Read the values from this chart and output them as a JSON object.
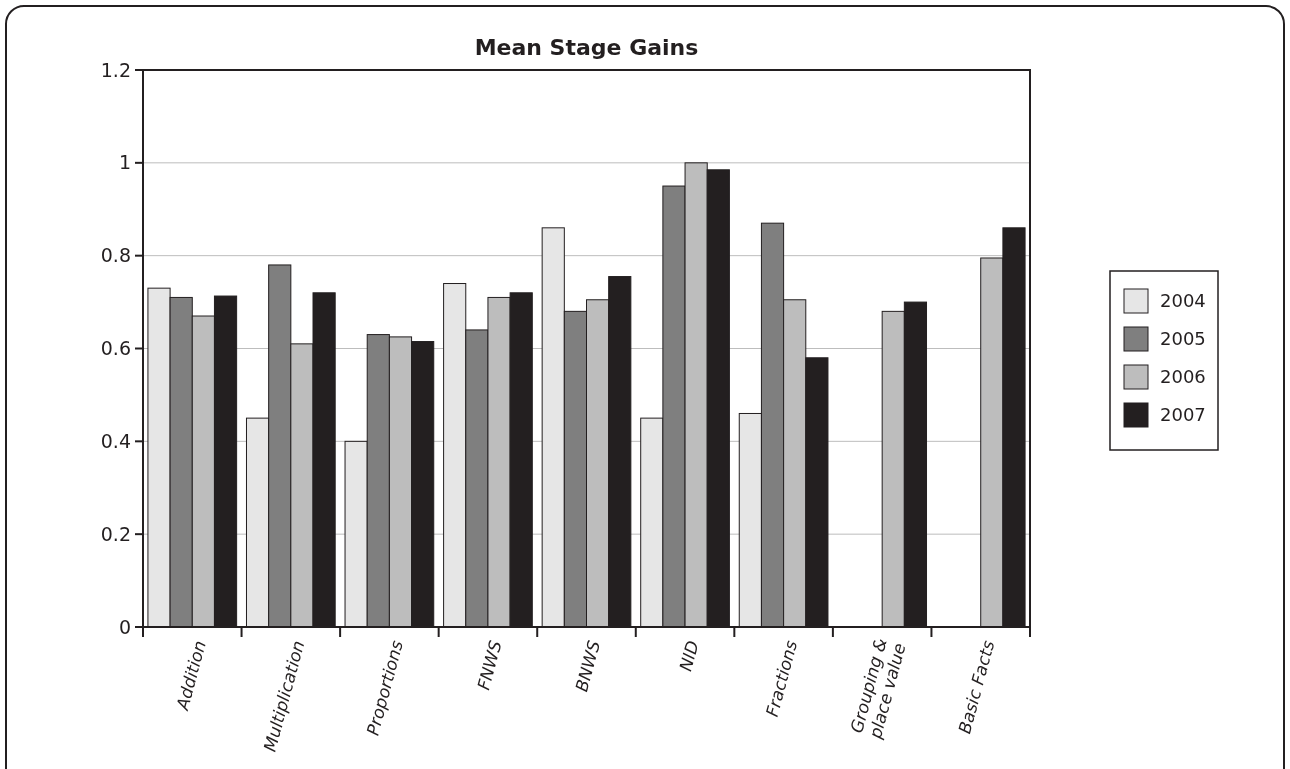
{
  "chart_data": {
    "type": "bar",
    "title": "Mean Stage Gains",
    "categories": [
      "Addition",
      "Multiplication",
      "Proportions",
      "FNWS",
      "BNWS",
      "NID",
      "Fractions",
      "Grouping & place value",
      "Basic Facts"
    ],
    "series": [
      {
        "name": "2004",
        "color": "#e6e6e6",
        "values": [
          0.73,
          0.45,
          0.4,
          0.74,
          0.86,
          0.45,
          0.46,
          null,
          null
        ]
      },
      {
        "name": "2005",
        "color": "#7f7f7f",
        "values": [
          0.71,
          0.78,
          0.63,
          0.64,
          0.68,
          0.95,
          0.87,
          null,
          null
        ]
      },
      {
        "name": "2006",
        "color": "#bdbdbd",
        "values": [
          0.67,
          0.61,
          0.625,
          0.71,
          0.705,
          1.0,
          0.705,
          0.68,
          0.795
        ]
      },
      {
        "name": "2007",
        "color": "#231f20",
        "values": [
          0.713,
          0.72,
          0.615,
          0.72,
          0.755,
          0.985,
          0.58,
          0.7,
          0.86
        ]
      }
    ],
    "ylim": [
      0,
      1.2
    ],
    "yticks": [
      0,
      0.2,
      0.4,
      0.6,
      0.8,
      1,
      1.2
    ],
    "grid": "y",
    "legend": "right"
  }
}
